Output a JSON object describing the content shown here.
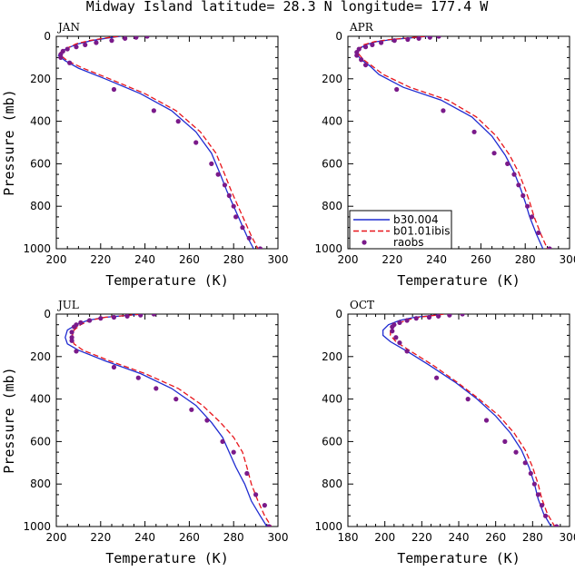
{
  "figure": {
    "title": "Midway Island  latitude= 28.3 N longitude= 177.4 W"
  },
  "legend": {
    "entries": [
      {
        "label": "b30.004",
        "color": "#1f2bd1",
        "style": "solid"
      },
      {
        "label": "b01.01ibis",
        "color": "#e8151b",
        "style": "dashed"
      },
      {
        "label": "raobs",
        "color": "#7a1a8a",
        "style": "dots"
      }
    ]
  },
  "chart_data": [
    {
      "type": "line",
      "panel": "JAN",
      "xlabel": "Temperature (K)",
      "ylabel": "Pressure (mb)",
      "xlim": [
        200,
        300
      ],
      "ylim": [
        0,
        1000
      ],
      "y_inverted": true,
      "xticks": [
        200,
        220,
        240,
        260,
        280,
        300
      ],
      "yticks": [
        0,
        200,
        400,
        600,
        800,
        1000
      ],
      "series": [
        {
          "name": "b30.004",
          "x": [
            229,
            222,
            216,
            210,
            205,
            202,
            201,
            204,
            210,
            222,
            238,
            252,
            263,
            270,
            274,
            277,
            280,
            283,
            286,
            289
          ],
          "y": [
            0,
            10,
            20,
            35,
            55,
            75,
            90,
            115,
            150,
            200,
            270,
            350,
            450,
            550,
            650,
            730,
            800,
            870,
            940,
            1000
          ]
        },
        {
          "name": "b01.01ibis",
          "x": [
            228,
            221,
            215,
            209,
            205,
            202,
            202,
            205,
            212,
            224,
            240,
            254,
            265,
            272,
            276,
            279,
            282,
            285,
            288,
            291
          ],
          "y": [
            0,
            10,
            20,
            35,
            55,
            75,
            90,
            115,
            150,
            200,
            270,
            350,
            450,
            550,
            650,
            730,
            800,
            870,
            940,
            1000
          ]
        },
        {
          "name": "raobs",
          "x": [
            241,
            236,
            231,
            225,
            218,
            213,
            209,
            205,
            203,
            202,
            202,
            206,
            226,
            244,
            255,
            263,
            270,
            273,
            276,
            278,
            280,
            281,
            284,
            287,
            292
          ],
          "y": [
            0,
            5,
            10,
            20,
            30,
            40,
            50,
            60,
            70,
            85,
            100,
            125,
            250,
            350,
            400,
            500,
            600,
            650,
            700,
            750,
            800,
            850,
            900,
            950,
            1000
          ]
        }
      ]
    },
    {
      "type": "line",
      "panel": "APR",
      "xlabel": "Temperature (K)",
      "ylabel": "",
      "xlim": [
        200,
        300
      ],
      "ylim": [
        0,
        1000
      ],
      "y_inverted": true,
      "xticks": [
        200,
        220,
        240,
        260,
        280,
        300
      ],
      "yticks": [
        0,
        200,
        400,
        600,
        800,
        1000
      ],
      "series": [
        {
          "name": "b30.004",
          "x": [
            236,
            228,
            220,
            213,
            208,
            205,
            204,
            206,
            210,
            214,
            225,
            242,
            256,
            265,
            271,
            275,
            278,
            280,
            282,
            285,
            288
          ],
          "y": [
            0,
            8,
            15,
            25,
            40,
            60,
            85,
            110,
            140,
            180,
            240,
            300,
            380,
            470,
            560,
            640,
            720,
            780,
            850,
            930,
            1000
          ]
        },
        {
          "name": "b01.01ibis",
          "x": [
            235,
            227,
            219,
            212,
            207,
            205,
            205,
            207,
            211,
            216,
            228,
            245,
            258,
            267,
            273,
            277,
            280,
            282,
            284,
            287,
            290
          ],
          "y": [
            0,
            8,
            15,
            25,
            40,
            60,
            85,
            110,
            140,
            180,
            240,
            300,
            380,
            470,
            560,
            640,
            720,
            780,
            850,
            930,
            1000
          ]
        },
        {
          "name": "raobs",
          "x": [
            241,
            237,
            232,
            227,
            221,
            215,
            211,
            208,
            205,
            204,
            204,
            206,
            208,
            222,
            243,
            257,
            266,
            272,
            275,
            277,
            279,
            281,
            283,
            286,
            291
          ],
          "y": [
            0,
            5,
            10,
            15,
            20,
            30,
            40,
            50,
            60,
            75,
            90,
            110,
            135,
            250,
            350,
            450,
            550,
            600,
            650,
            700,
            750,
            800,
            850,
            925,
            1000
          ]
        }
      ]
    },
    {
      "type": "line",
      "panel": "JUL",
      "xlabel": "Temperature (K)",
      "ylabel": "Pressure (mb)",
      "xlim": [
        200,
        300
      ],
      "ylim": [
        0,
        1000
      ],
      "y_inverted": true,
      "xticks": [
        200,
        220,
        240,
        260,
        280,
        300
      ],
      "yticks": [
        0,
        200,
        400,
        600,
        800,
        1000
      ],
      "series": [
        {
          "name": "b30.004",
          "x": [
            239,
            230,
            222,
            214,
            209,
            205,
            204,
            205,
            210,
            222,
            238,
            252,
            263,
            270,
            275,
            278,
            281,
            285,
            288,
            292,
            295
          ],
          "y": [
            0,
            8,
            15,
            30,
            50,
            75,
            110,
            140,
            170,
            220,
            280,
            350,
            430,
            510,
            580,
            650,
            720,
            800,
            880,
            950,
            1000
          ]
        },
        {
          "name": "b01.01ibis",
          "x": [
            238,
            230,
            222,
            215,
            211,
            208,
            207,
            208,
            212,
            224,
            240,
            255,
            266,
            274,
            280,
            284,
            286,
            288,
            291,
            294,
            297
          ],
          "y": [
            0,
            8,
            15,
            30,
            50,
            75,
            110,
            140,
            170,
            220,
            280,
            350,
            430,
            510,
            580,
            650,
            720,
            800,
            880,
            950,
            1000
          ]
        },
        {
          "name": "raobs",
          "x": [
            244,
            238,
            232,
            226,
            220,
            215,
            211,
            209,
            208,
            207,
            207,
            207,
            209,
            226,
            237,
            245,
            254,
            261,
            268,
            275,
            280,
            286,
            290,
            294,
            296
          ],
          "y": [
            0,
            5,
            10,
            15,
            20,
            30,
            40,
            50,
            60,
            85,
            110,
            125,
            175,
            250,
            300,
            350,
            400,
            450,
            500,
            600,
            650,
            750,
            850,
            900,
            1000
          ]
        }
      ]
    },
    {
      "type": "line",
      "panel": "OCT",
      "xlabel": "Temperature (K)",
      "ylabel": "",
      "xlim": [
        180,
        300
      ],
      "ylim": [
        0,
        1000
      ],
      "y_inverted": true,
      "xticks": [
        180,
        200,
        220,
        240,
        260,
        280,
        300
      ],
      "yticks": [
        0,
        200,
        400,
        600,
        800,
        1000
      ],
      "series": [
        {
          "name": "b30.004",
          "x": [
            232,
            224,
            216,
            208,
            202,
            199,
            199,
            203,
            212,
            224,
            238,
            250,
            260,
            268,
            274,
            278,
            281,
            283,
            286,
            290
          ],
          "y": [
            0,
            8,
            15,
            30,
            50,
            75,
            100,
            130,
            175,
            240,
            320,
            400,
            480,
            560,
            640,
            720,
            800,
            870,
            940,
            1000
          ]
        },
        {
          "name": "b01.01ibis",
          "x": [
            232,
            225,
            218,
            211,
            206,
            203,
            203,
            206,
            214,
            226,
            239,
            251,
            262,
            270,
            276,
            280,
            283,
            285,
            288,
            292
          ],
          "y": [
            0,
            8,
            15,
            30,
            50,
            75,
            100,
            130,
            175,
            240,
            320,
            400,
            480,
            560,
            640,
            720,
            800,
            870,
            940,
            1000
          ]
        },
        {
          "name": "raobs",
          "x": [
            242,
            235,
            229,
            224,
            217,
            212,
            208,
            205,
            204,
            204,
            206,
            208,
            212,
            228,
            245,
            255,
            265,
            271,
            276,
            279,
            281,
            283,
            285,
            287,
            293
          ],
          "y": [
            0,
            5,
            10,
            15,
            20,
            30,
            40,
            50,
            60,
            80,
            110,
            135,
            175,
            300,
            400,
            500,
            600,
            650,
            700,
            750,
            800,
            850,
            900,
            950,
            1000
          ]
        }
      ]
    }
  ]
}
